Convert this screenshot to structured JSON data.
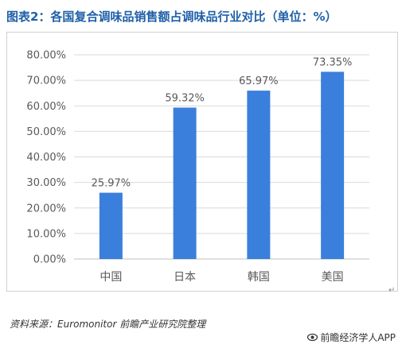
{
  "title": "图表2：各国复合调味品销售额占调味品行业对比（单位：%）",
  "source": "资料来源：Euromonitor 前瞻产业研究院整理",
  "brand": "前瞻经济学人APP",
  "brand_icon": "eye-logo-icon",
  "return_mark": "↵",
  "chart_data": {
    "type": "bar",
    "title": "图表2：各国复合调味品销售额占调味品行业对比（单位：%）",
    "categories": [
      "中国",
      "日本",
      "韩国",
      "美国"
    ],
    "values": [
      25.97,
      59.32,
      65.97,
      73.35
    ],
    "data_labels": [
      "25.97%",
      "59.32%",
      "65.97%",
      "73.35%"
    ],
    "y_ticks": [
      "0.00%",
      "10.00%",
      "20.00%",
      "30.00%",
      "40.00%",
      "50.00%",
      "60.00%",
      "70.00%",
      "80.00%"
    ],
    "ylim": [
      0,
      80
    ],
    "xlabel": "",
    "ylabel": "",
    "grid": true,
    "legend": "none",
    "bar_color": "#3a7fdb",
    "grid_color": "#d9d9d9",
    "tick_label_color": "#595959",
    "data_label_color": "#595959"
  }
}
